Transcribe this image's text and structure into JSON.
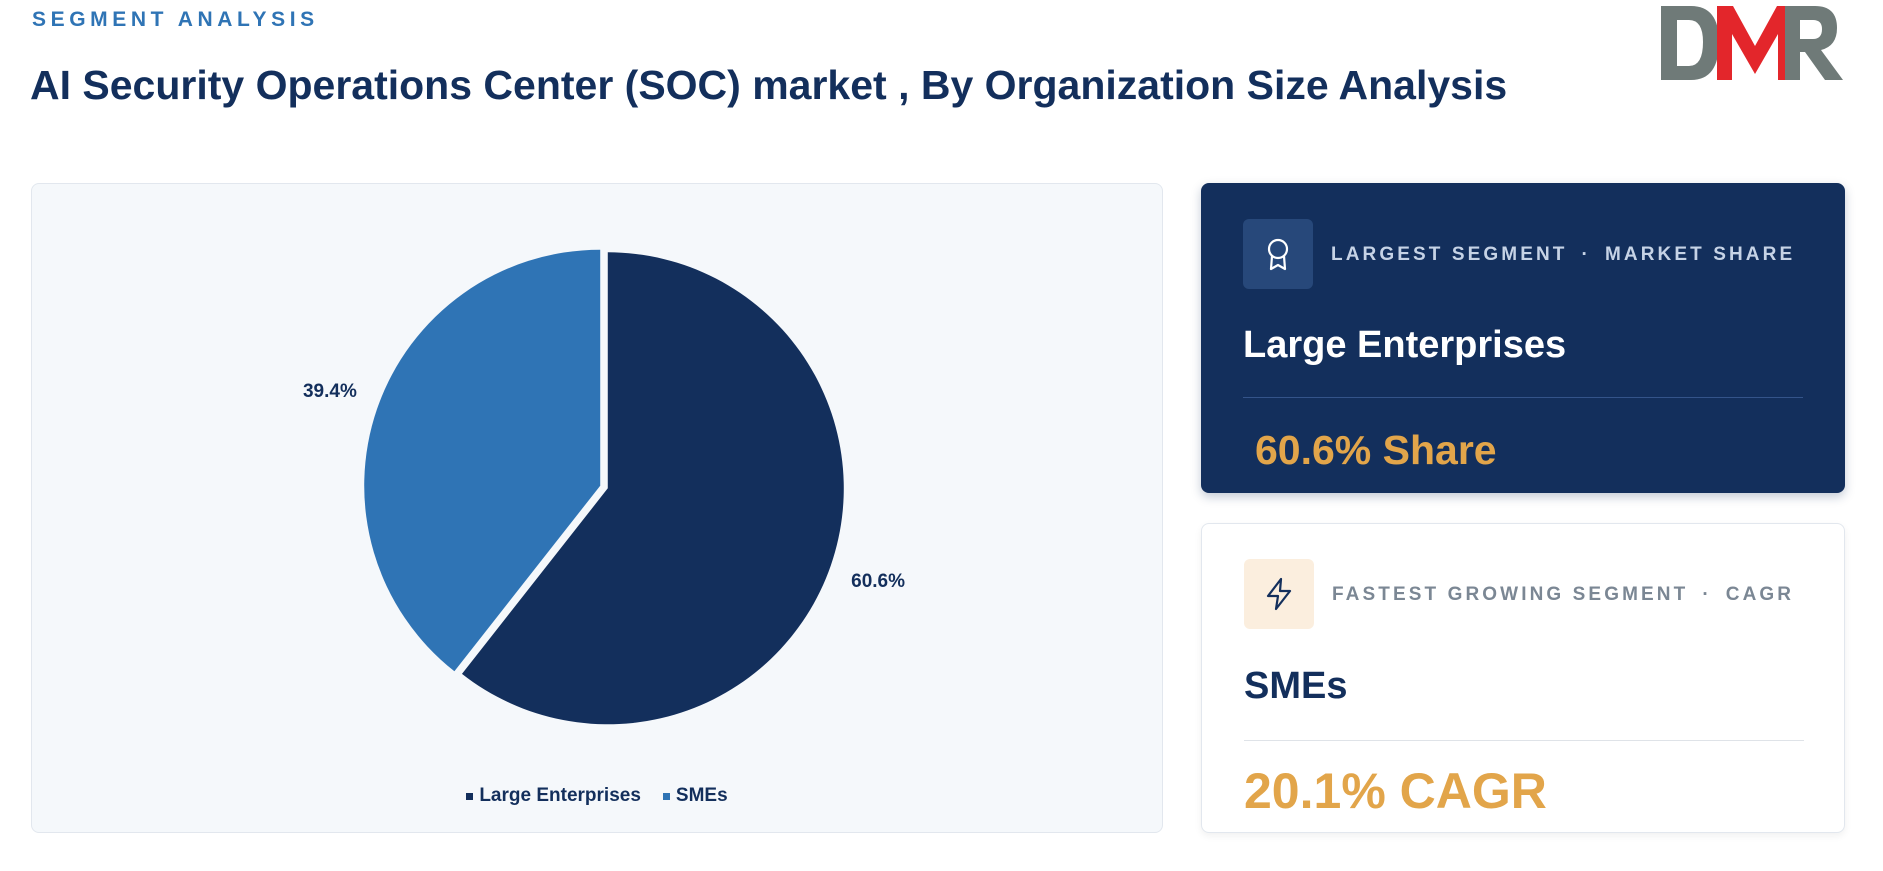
{
  "header": {
    "eyebrow": "SEGMENT ANALYSIS",
    "title": "AI Security Operations Center (SOC) market , By Organization Size Analysis"
  },
  "logo": {
    "text": "DMR",
    "colors": {
      "d": "#6f7a78",
      "m": "#e3262b",
      "r": "#6f7a78"
    }
  },
  "chart_data": {
    "type": "pie",
    "slices": [
      {
        "label": "Large Enterprises",
        "value": 60.6,
        "display": "60.6%",
        "color": "#132f5c"
      },
      {
        "label": "SMEs",
        "value": 39.4,
        "display": "39.4%",
        "color": "#2f74b5"
      }
    ],
    "start_angle": "12 o'clock, clockwise",
    "legend_position": "bottom"
  },
  "cards": {
    "largest": {
      "icon": "award-ribbon-icon",
      "label_left": "LARGEST SEGMENT",
      "separator": "·",
      "label_right": "MARKET SHARE",
      "segment": "Large Enterprises",
      "metric": "60.6% Share"
    },
    "fastest": {
      "icon": "lightning-bolt-icon",
      "label_left": "FASTEST GROWING SEGMENT",
      "separator": "·",
      "label_right": "CAGR",
      "segment": "SMEs",
      "metric": "20.1% CAGR"
    }
  },
  "colors": {
    "navy": "#132f5c",
    "blue": "#2f74b5",
    "accent": "#e2a54a"
  }
}
